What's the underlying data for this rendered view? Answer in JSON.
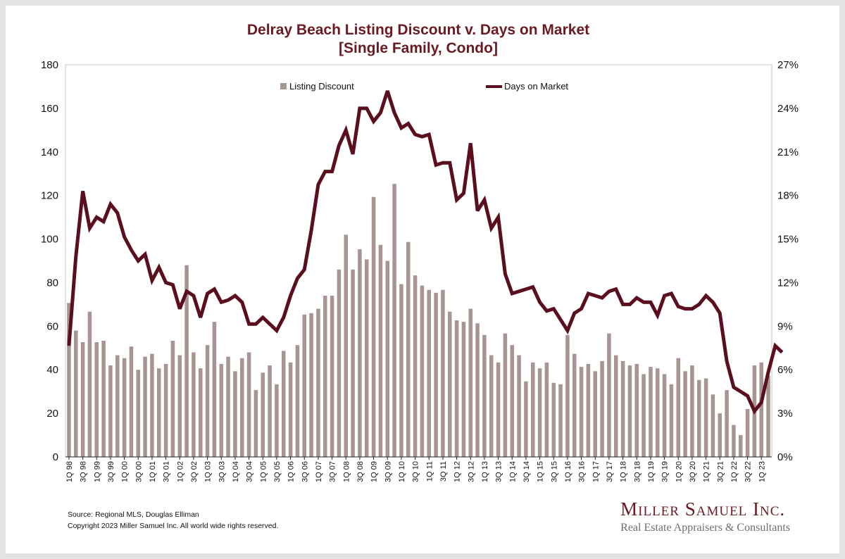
{
  "chart_data": {
    "type": "bar+line",
    "title": "Delray Beach Listing Discount v. Days on Market",
    "subtitle": "[Single Family, Condo]",
    "left_axis": {
      "min": 0,
      "max": 180,
      "ticks": [
        "0",
        "20",
        "40",
        "60",
        "80",
        "100",
        "120",
        "140",
        "160",
        "180"
      ]
    },
    "right_axis": {
      "min": 0,
      "max": 27,
      "ticks": [
        "0%",
        "3%",
        "6%",
        "9%",
        "12%",
        "15%",
        "18%",
        "21%",
        "24%",
        "27%"
      ]
    },
    "x_tick_labels": [
      "1Q 98",
      "3Q 98",
      "1Q 99",
      "3Q 99",
      "1Q 00",
      "3Q 00",
      "1Q 01",
      "3Q 01",
      "1Q 02",
      "3Q 02",
      "1Q 03",
      "3Q 03",
      "1Q 04",
      "3Q 04",
      "1Q 05",
      "3Q 05",
      "1Q 06",
      "3Q 06",
      "1Q 07",
      "3Q 07",
      "1Q 08",
      "3Q 08",
      "1Q 09",
      "3Q 09",
      "1Q 10",
      "3Q 10",
      "1Q 11",
      "3Q 11",
      "1Q 12",
      "3Q 12",
      "1Q 13",
      "3Q 13",
      "1Q 14",
      "3Q 14",
      "1Q 15",
      "3Q 15",
      "1Q 16",
      "3Q 16",
      "1Q 17",
      "3Q 17",
      "1Q 18",
      "3Q 18",
      "1Q 19",
      "3Q 19",
      "1Q 20",
      "3Q 20",
      "1Q 21",
      "3Q 21",
      "1Q 22",
      "3Q 22",
      "1Q 23"
    ],
    "legend_position": "top",
    "series": [
      {
        "name": "Listing Discount",
        "type": "bar",
        "axis": "right",
        "unit": "%",
        "color": "#a89593",
        "values": [
          10.6,
          8.7,
          7.9,
          10.0,
          7.9,
          8.0,
          6.3,
          7.0,
          6.8,
          7.6,
          6.0,
          6.9,
          7.1,
          6.1,
          6.4,
          8.0,
          7.0,
          13.2,
          7.2,
          6.1,
          7.7,
          9.3,
          6.4,
          6.9,
          5.9,
          6.8,
          7.2,
          4.6,
          5.8,
          6.3,
          5.0,
          7.3,
          6.5,
          7.7,
          9.8,
          9.9,
          10.2,
          11.1,
          11.1,
          12.9,
          15.3,
          12.9,
          14.3,
          13.6,
          17.9,
          14.6,
          13.5,
          18.8,
          11.9,
          14.8,
          12.5,
          11.8,
          11.5,
          11.3,
          11.5,
          10.0,
          9.4,
          9.3,
          10.2,
          9.2,
          8.4,
          7.0,
          6.5,
          8.5,
          7.7,
          7.0,
          5.2,
          6.5,
          6.1,
          6.5,
          5.1,
          5.0,
          8.4,
          7.1,
          6.2,
          6.4,
          5.9,
          6.6,
          8.5,
          7.0,
          6.6,
          6.3,
          6.4,
          5.7,
          6.2,
          6.1,
          5.7,
          5.0,
          6.8,
          5.9,
          6.3,
          5.3,
          5.4,
          4.3,
          3.0,
          4.6,
          2.2,
          1.5,
          3.3,
          6.3,
          6.5,
          5.6
        ]
      },
      {
        "name": "Days on Market",
        "type": "line",
        "axis": "left",
        "color": "#5a0e1e",
        "values": [
          51,
          92,
          122,
          105,
          110,
          108,
          116,
          112,
          101,
          95,
          90,
          93,
          81,
          87,
          80,
          79,
          68,
          76,
          74,
          64,
          75,
          77,
          71,
          72,
          74,
          71,
          61,
          61,
          64,
          61,
          58,
          64,
          74,
          82,
          86,
          104,
          125,
          131,
          131,
          143,
          150,
          139,
          160,
          160,
          154,
          158,
          168,
          158,
          151,
          153,
          148,
          147,
          148,
          134,
          135,
          135,
          118,
          121,
          144,
          113,
          118,
          105,
          110,
          84,
          75,
          76,
          77,
          78,
          71,
          67,
          68,
          63,
          58,
          66,
          68,
          75,
          74,
          73,
          76,
          77,
          70,
          70,
          73,
          71,
          71,
          65,
          74,
          75,
          69,
          68,
          68,
          70,
          74,
          71,
          66,
          44,
          32,
          30,
          28,
          21,
          25,
          39,
          51,
          48
        ]
      }
    ]
  },
  "footer": {
    "source": "Source: Regional MLS, Douglas Elliman",
    "copyright": "Copyright 2023 Miller Samuel Inc.  All world wide rights reserved."
  },
  "logo": {
    "name": "Miller Samuel Inc.",
    "tagline": "Real Estate Appraisers & Consultants"
  }
}
